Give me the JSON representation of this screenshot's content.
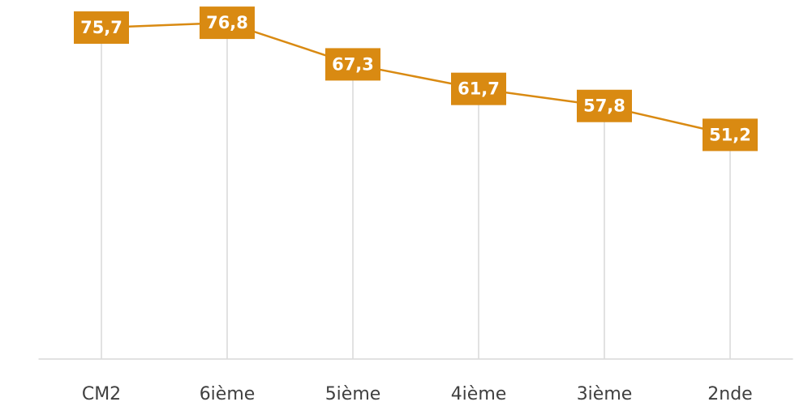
{
  "chart_data": {
    "type": "line",
    "categories": [
      "CM2",
      "6ième",
      "5ième",
      "4ième",
      "3ième",
      "2nde"
    ],
    "values": [
      75.7,
      76.8,
      67.3,
      61.7,
      57.8,
      51.2
    ],
    "value_labels": [
      "75,7",
      "76,8",
      "67,3",
      "61,7",
      "57,8",
      "51,2"
    ],
    "color": "#d98a12",
    "ylim": [
      0,
      82
    ],
    "drop_lines": true
  }
}
